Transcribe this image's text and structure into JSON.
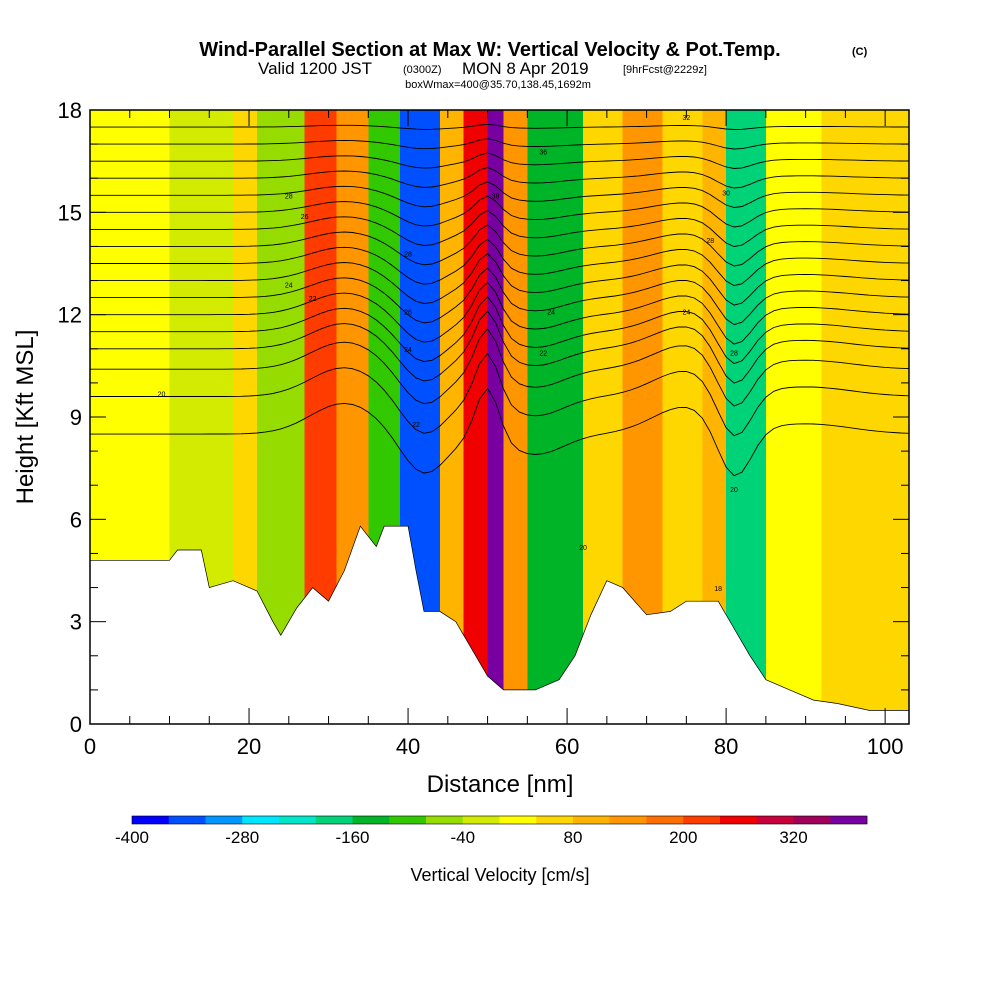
{
  "chart_data": {
    "type": "heatmap",
    "title": {
      "main": "Wind-Parallel Section at Max W: Vertical Velocity & Pot.Temp.",
      "copyright": "(C)",
      "valid_a": "Valid 1200 JST",
      "valid_utc": "(0300Z)",
      "valid_b": "MON 8 Apr 2019",
      "forecast": "[9hrFcst@2229z]",
      "box": "boxWmax=400@35.70,138.45,1692m"
    },
    "xlabel": "Distance [nm]",
    "ylabel": "Height [Kft MSL]",
    "xlim": [
      0,
      103
    ],
    "ylim": [
      0,
      18
    ],
    "x_ticks": [
      0,
      20,
      40,
      60,
      80,
      100
    ],
    "y_ticks": [
      0,
      3,
      6,
      9,
      12,
      15,
      18
    ],
    "colorbar": {
      "label": "Vertical Velocity [cm/s]",
      "min": -400,
      "max": 400,
      "step": 40,
      "tick_values": [
        -400,
        -280,
        -160,
        -40,
        80,
        200,
        320
      ],
      "colors": [
        "#0000ff",
        "#0050ff",
        "#0096ff",
        "#00e6ff",
        "#00e6c8",
        "#00d278",
        "#00b428",
        "#32c800",
        "#96dc00",
        "#d2eb00",
        "#ffff00",
        "#ffd700",
        "#ffb400",
        "#ff9600",
        "#ff6e00",
        "#ff3c00",
        "#f00000",
        "#c8003c",
        "#a0005a",
        "#7800a0"
      ]
    },
    "vertical_velocity_bands": [
      {
        "x": 0,
        "value": 0
      },
      {
        "x": 10,
        "value": -40
      },
      {
        "x": 18,
        "value": 40
      },
      {
        "x": 21,
        "value": -60
      },
      {
        "x": 27,
        "value": 200
      },
      {
        "x": 31,
        "value": 120
      },
      {
        "x": 35,
        "value": -120
      },
      {
        "x": 39,
        "value": -360
      },
      {
        "x": 44,
        "value": 80
      },
      {
        "x": 47,
        "value": 240
      },
      {
        "x": 50,
        "value": 400
      },
      {
        "x": 52,
        "value": 120
      },
      {
        "x": 55,
        "value": -160
      },
      {
        "x": 58,
        "value": -140
      },
      {
        "x": 62,
        "value": 40
      },
      {
        "x": 67,
        "value": 120
      },
      {
        "x": 72,
        "value": 40
      },
      {
        "x": 77,
        "value": 80
      },
      {
        "x": 80,
        "value": -180
      },
      {
        "x": 85,
        "value": 0
      },
      {
        "x": 92,
        "value": 40
      },
      {
        "x": 103,
        "value": 40
      }
    ],
    "band_tilt_kft_per_nm": 3.5,
    "terrain_kft": [
      {
        "x": 0,
        "h": 4.8
      },
      {
        "x": 10,
        "h": 4.8
      },
      {
        "x": 11,
        "h": 5.1
      },
      {
        "x": 14,
        "h": 5.1
      },
      {
        "x": 15,
        "h": 4.0
      },
      {
        "x": 18,
        "h": 4.2
      },
      {
        "x": 21,
        "h": 3.9
      },
      {
        "x": 23,
        "h": 3.0
      },
      {
        "x": 24,
        "h": 2.6
      },
      {
        "x": 26,
        "h": 3.4
      },
      {
        "x": 28,
        "h": 4.0
      },
      {
        "x": 30,
        "h": 3.6
      },
      {
        "x": 32,
        "h": 4.5
      },
      {
        "x": 34,
        "h": 5.8
      },
      {
        "x": 36,
        "h": 5.2
      },
      {
        "x": 37,
        "h": 5.8
      },
      {
        "x": 40,
        "h": 5.8
      },
      {
        "x": 41,
        "h": 4.5
      },
      {
        "x": 42,
        "h": 3.3
      },
      {
        "x": 44,
        "h": 3.3
      },
      {
        "x": 46,
        "h": 3.0
      },
      {
        "x": 48,
        "h": 2.2
      },
      {
        "x": 50,
        "h": 1.4
      },
      {
        "x": 52,
        "h": 1.0
      },
      {
        "x": 56,
        "h": 1.0
      },
      {
        "x": 59,
        "h": 1.3
      },
      {
        "x": 61,
        "h": 2.0
      },
      {
        "x": 63,
        "h": 3.2
      },
      {
        "x": 65,
        "h": 4.2
      },
      {
        "x": 67,
        "h": 4.0
      },
      {
        "x": 70,
        "h": 3.2
      },
      {
        "x": 73,
        "h": 3.3
      },
      {
        "x": 75,
        "h": 3.6
      },
      {
        "x": 79,
        "h": 3.6
      },
      {
        "x": 81,
        "h": 2.8
      },
      {
        "x": 83,
        "h": 2.0
      },
      {
        "x": 85,
        "h": 1.3
      },
      {
        "x": 88,
        "h": 1.0
      },
      {
        "x": 91,
        "h": 0.7
      },
      {
        "x": 94,
        "h": 0.6
      },
      {
        "x": 98,
        "h": 0.4
      },
      {
        "x": 103,
        "h": 0.4
      }
    ],
    "isentrope_base_heights_kft": [
      8.5,
      9.6,
      10.4,
      11.0,
      11.5,
      12.0,
      12.5,
      13.0,
      13.5,
      14.0,
      14.5,
      15.0,
      15.5,
      16.0,
      16.5,
      17.0,
      17.5
    ],
    "isentrope_labels": [
      {
        "x": 9,
        "h": 9.6,
        "text": "20"
      },
      {
        "x": 25,
        "h": 15.4,
        "text": "28"
      },
      {
        "x": 27,
        "h": 14.8,
        "text": "26"
      },
      {
        "x": 25,
        "h": 12.8,
        "text": "24"
      },
      {
        "x": 28,
        "h": 12.4,
        "text": "22"
      },
      {
        "x": 40,
        "h": 13.7,
        "text": "28"
      },
      {
        "x": 40,
        "h": 12.0,
        "text": "26"
      },
      {
        "x": 40,
        "h": 10.9,
        "text": "24"
      },
      {
        "x": 41,
        "h": 8.7,
        "text": "22"
      },
      {
        "x": 51,
        "h": 15.4,
        "text": "38"
      },
      {
        "x": 57,
        "h": 16.7,
        "text": "36"
      },
      {
        "x": 58,
        "h": 12.0,
        "text": "24"
      },
      {
        "x": 57,
        "h": 10.8,
        "text": "22"
      },
      {
        "x": 62,
        "h": 5.1,
        "text": "20"
      },
      {
        "x": 75,
        "h": 17.7,
        "text": "32"
      },
      {
        "x": 80,
        "h": 15.5,
        "text": "30"
      },
      {
        "x": 78,
        "h": 14.1,
        "text": "28"
      },
      {
        "x": 75,
        "h": 12.0,
        "text": "24"
      },
      {
        "x": 81,
        "h": 10.8,
        "text": "28"
      },
      {
        "x": 81,
        "h": 6.8,
        "text": "20"
      },
      {
        "x": 79,
        "h": 3.9,
        "text": "18"
      }
    ]
  }
}
